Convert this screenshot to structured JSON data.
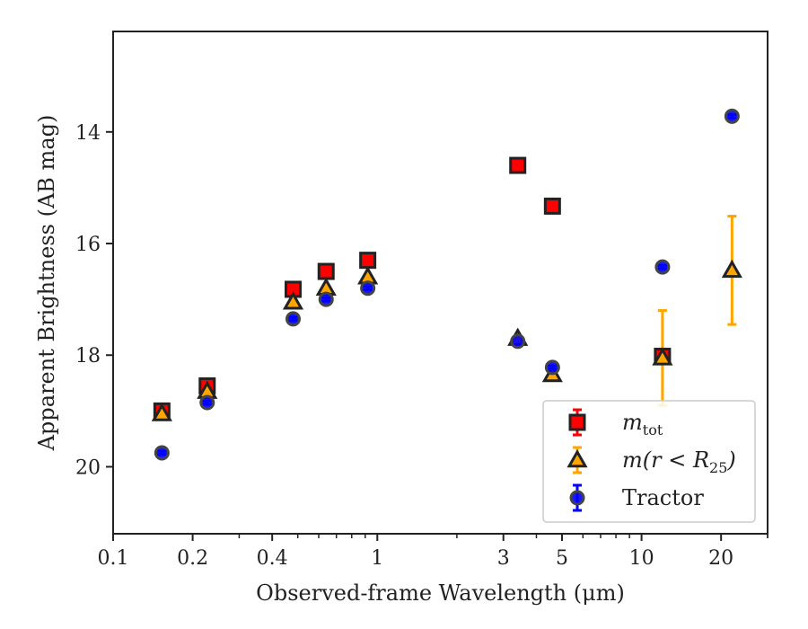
{
  "chart_data": {
    "type": "scatter",
    "xscale": "log",
    "yinverted": true,
    "xlim": [
      0.1,
      30
    ],
    "ylim": [
      21.2,
      12.2
    ],
    "xlabel": "Observed-frame Wavelength (μm)",
    "ylabel": "Apparent Brightness (AB mag)",
    "xticks": [
      {
        "value": 0.1,
        "label": "0.1"
      },
      {
        "value": 0.2,
        "label": "0.2"
      },
      {
        "value": 0.4,
        "label": "0.4"
      },
      {
        "value": 1,
        "label": "1"
      },
      {
        "value": 3,
        "label": "3"
      },
      {
        "value": 5,
        "label": "5"
      },
      {
        "value": 10,
        "label": "10"
      },
      {
        "value": 20,
        "label": "20"
      }
    ],
    "yticks": [
      {
        "value": 14,
        "label": "14"
      },
      {
        "value": 16,
        "label": "16"
      },
      {
        "value": 18,
        "label": "18"
      },
      {
        "value": 20,
        "label": "20"
      }
    ],
    "grid": false,
    "legend_position": "lower-right",
    "series": [
      {
        "name": "m_tot",
        "marker": "square",
        "color": "#ff0000",
        "points": [
          {
            "x": 0.153,
            "y": 19.0,
            "err": 0.05
          },
          {
            "x": 0.227,
            "y": 18.55,
            "err": 0.05
          },
          {
            "x": 0.48,
            "y": 16.82,
            "err": 0.03
          },
          {
            "x": 0.64,
            "y": 16.5,
            "err": 0.03
          },
          {
            "x": 0.92,
            "y": 16.3,
            "err": 0.03
          },
          {
            "x": 3.4,
            "y": 14.6,
            "err": 0.03
          },
          {
            "x": 4.6,
            "y": 15.33,
            "err": 0.03
          },
          {
            "x": 12.0,
            "y": 18.02,
            "err": 0.05
          }
        ]
      },
      {
        "name": "m(r < R25)",
        "marker": "triangle",
        "color": "#ffa500",
        "points": [
          {
            "x": 0.153,
            "y": 19.05,
            "err": 0.05
          },
          {
            "x": 0.227,
            "y": 18.65,
            "err": 0.05
          },
          {
            "x": 0.48,
            "y": 17.05,
            "err": 0.03
          },
          {
            "x": 0.64,
            "y": 16.8,
            "err": 0.03
          },
          {
            "x": 0.92,
            "y": 16.6,
            "err": 0.03
          },
          {
            "x": 3.4,
            "y": 17.7,
            "err": 0.03
          },
          {
            "x": 4.6,
            "y": 18.35,
            "err": 0.03
          },
          {
            "x": 12.0,
            "y": 18.05,
            "err": 0.85
          },
          {
            "x": 22.0,
            "y": 16.48,
            "err": 0.97
          }
        ]
      },
      {
        "name": "Tractor",
        "marker": "circle",
        "color": "#0000ff",
        "points": [
          {
            "x": 0.153,
            "y": 19.75,
            "err": 0.03
          },
          {
            "x": 0.227,
            "y": 18.85,
            "err": 0.03
          },
          {
            "x": 0.48,
            "y": 17.35,
            "err": 0.03
          },
          {
            "x": 0.64,
            "y": 17.0,
            "err": 0.03
          },
          {
            "x": 0.92,
            "y": 16.8,
            "err": 0.03
          },
          {
            "x": 3.4,
            "y": 17.75,
            "err": 0.03
          },
          {
            "x": 4.6,
            "y": 18.22,
            "err": 0.03
          },
          {
            "x": 12.0,
            "y": 16.42,
            "err": 0.03
          },
          {
            "x": 22.0,
            "y": 13.72,
            "err": 0.03
          }
        ]
      }
    ],
    "legend": [
      {
        "series": 0,
        "label_main": "m",
        "label_sub": "tot"
      },
      {
        "series": 1,
        "label_main": "m(r < R",
        "label_sub": "25",
        "label_tail": ")"
      },
      {
        "series": 2,
        "label_main": "Tractor",
        "label_sub": "",
        "label_tail": ""
      }
    ]
  }
}
